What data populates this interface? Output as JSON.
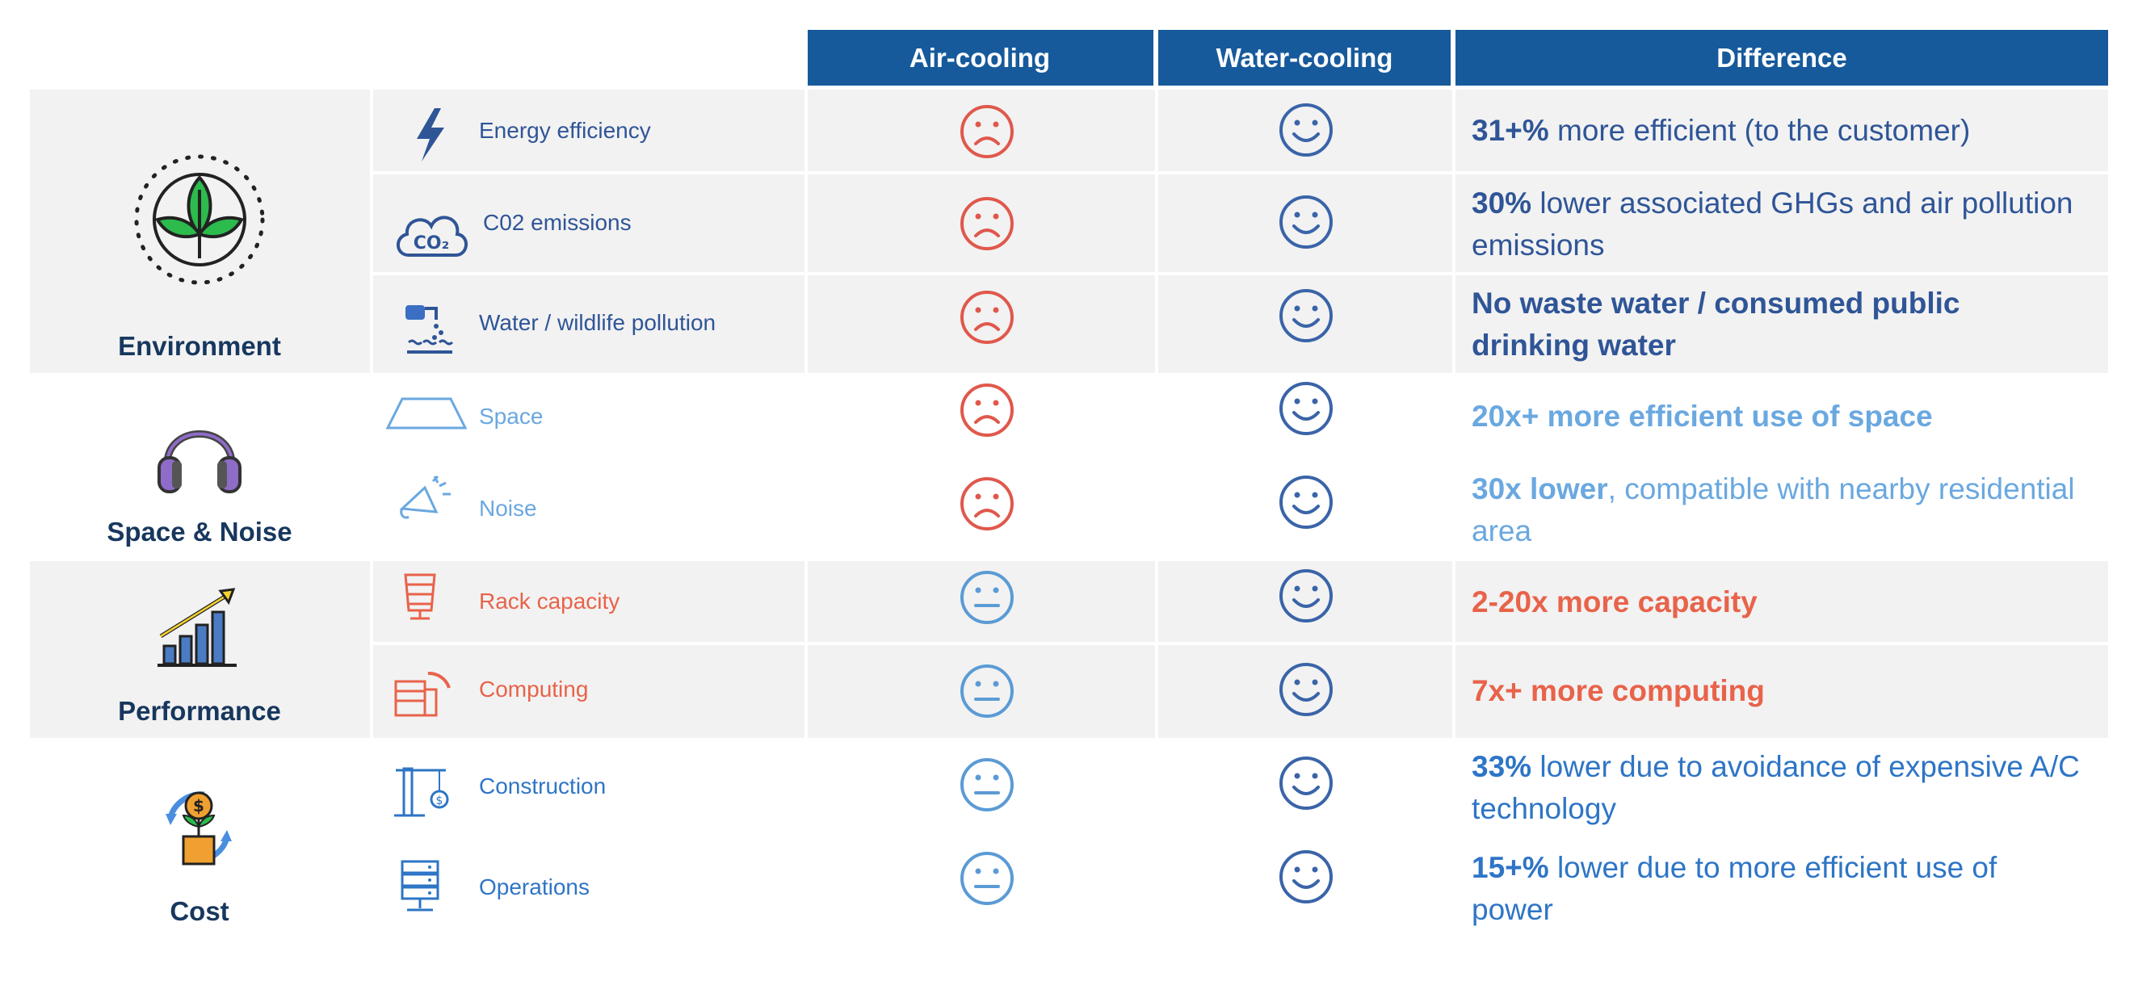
{
  "header": {
    "air": "Air-cooling",
    "water": "Water-cooling",
    "diff": "Difference"
  },
  "colors": {
    "header_bg": "#165a9c",
    "env": "#2f5597",
    "space": "#6aa8e0",
    "perf": "#e8634a",
    "cost": "#2e75c6",
    "frown": "#e0584c",
    "neutral": "#5b9bd5",
    "smile": "#3a64a8"
  },
  "categories": {
    "environment": "Environment",
    "space_noise": "Space & Noise",
    "performance": "Performance",
    "cost": "Cost"
  },
  "rows": [
    {
      "label": "Energy efficiency",
      "diff_bold": "31+%",
      "diff_rest": " more efficient (to the customer)"
    },
    {
      "label": "C02 emissions",
      "diff_bold": "30%",
      "diff_rest": " lower associated GHGs and air pollution emissions"
    },
    {
      "label": "Water / wildlife pollution",
      "diff_bold": "No waste water / consumed public drinking water",
      "diff_rest": ""
    },
    {
      "label": "Space",
      "diff_bold": "20x+ more efficient use of space",
      "diff_rest": ""
    },
    {
      "label": "Noise",
      "diff_bold": "30x lower",
      "diff_rest": ", compatible with nearby residential area"
    },
    {
      "label": "Rack capacity",
      "diff_bold": "2-20x more capacity",
      "diff_rest": ""
    },
    {
      "label": "Computing",
      "diff_bold": "7x+ more computing",
      "diff_rest": ""
    },
    {
      "label": "Construction",
      "diff_bold": "33%",
      "diff_rest": " lower due to avoidance of expensive A/C technology"
    },
    {
      "label": "Operations",
      "diff_bold": "15+%",
      "diff_rest": " lower due to more efficient use of power"
    }
  ]
}
